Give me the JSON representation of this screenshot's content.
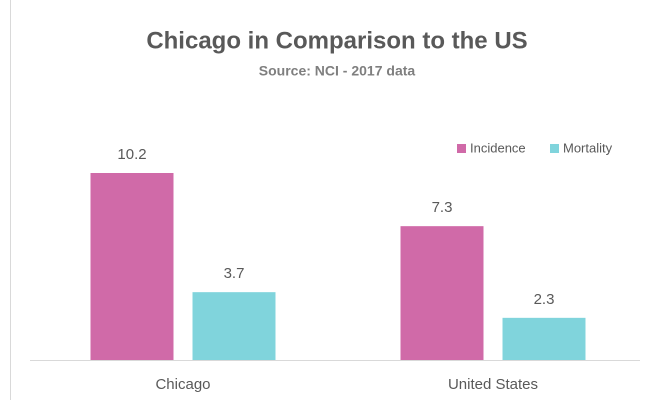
{
  "chart_data": {
    "type": "bar",
    "title": "Chicago in Comparison to the US",
    "subtitle": "Source: NCI - 2017 data",
    "categories": [
      "Chicago",
      "United States"
    ],
    "series": [
      {
        "name": "Incidence",
        "color": "#d06aa8",
        "values": [
          10.2,
          7.3
        ]
      },
      {
        "name": "Mortality",
        "color": "#80d4dc",
        "values": [
          3.7,
          2.3
        ]
      }
    ],
    "legend": "top-right"
  }
}
